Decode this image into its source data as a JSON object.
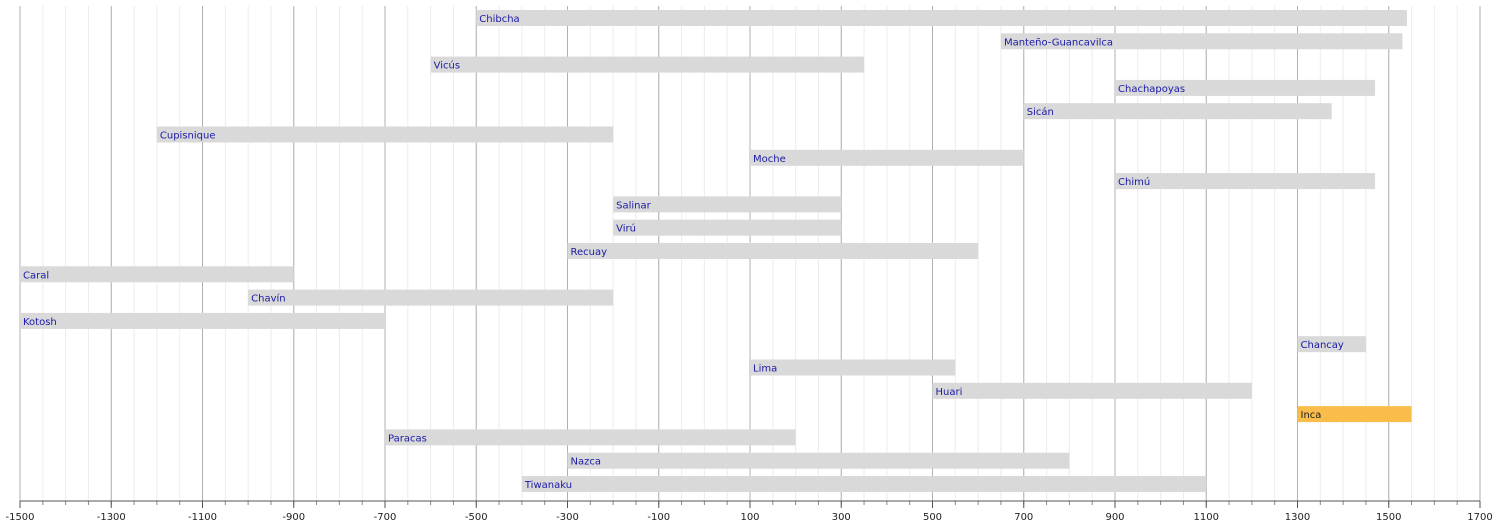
{
  "chart_data": {
    "type": "timeline",
    "xlim": [
      -1500,
      1700
    ],
    "xticks": [
      -1500,
      -1300,
      -1100,
      -900,
      -700,
      -500,
      -300,
      -100,
      100,
      300,
      500,
      700,
      900,
      1100,
      1300,
      1500,
      1700
    ],
    "minor_grid_step": 50,
    "grid": true,
    "label_color": "#1a1aa6",
    "series": [
      {
        "name": "Chibcha",
        "start": -500,
        "end": 1540,
        "color": "#d9d9d9"
      },
      {
        "name": "Manteño-Guancavilca",
        "start": 650,
        "end": 1530,
        "color": "#d9d9d9"
      },
      {
        "name": "Vicús",
        "start": -600,
        "end": 350,
        "color": "#d9d9d9"
      },
      {
        "name": "Chachapoyas",
        "start": 900,
        "end": 1470,
        "color": "#d9d9d9"
      },
      {
        "name": "Sicán",
        "start": 700,
        "end": 1375,
        "color": "#d9d9d9"
      },
      {
        "name": "Cupisnique",
        "start": -1200,
        "end": -200,
        "color": "#d9d9d9"
      },
      {
        "name": "Moche",
        "start": 100,
        "end": 700,
        "color": "#d9d9d9"
      },
      {
        "name": "Chimú",
        "start": 900,
        "end": 1470,
        "color": "#d9d9d9"
      },
      {
        "name": "Salinar",
        "start": -200,
        "end": 300,
        "color": "#d9d9d9"
      },
      {
        "name": "Virú",
        "start": -200,
        "end": 300,
        "color": "#d9d9d9"
      },
      {
        "name": "Recuay",
        "start": -300,
        "end": 600,
        "color": "#d9d9d9"
      },
      {
        "name": "Caral",
        "start": -1500,
        "end": -900,
        "color": "#d9d9d9"
      },
      {
        "name": "Chavín",
        "start": -1000,
        "end": -200,
        "color": "#d9d9d9"
      },
      {
        "name": "Kotosh",
        "start": -1500,
        "end": -700,
        "color": "#d9d9d9"
      },
      {
        "name": "Chancay",
        "start": 1300,
        "end": 1450,
        "color": "#d9d9d9"
      },
      {
        "name": "Lima",
        "start": 100,
        "end": 550,
        "color": "#d9d9d9"
      },
      {
        "name": "Huari",
        "start": 500,
        "end": 1200,
        "color": "#d9d9d9"
      },
      {
        "name": "Inca",
        "start": 1300,
        "end": 1550,
        "color": "#fbbd4a"
      },
      {
        "name": "Paracas",
        "start": -700,
        "end": 200,
        "color": "#d9d9d9"
      },
      {
        "name": "Nazca",
        "start": -300,
        "end": 800,
        "color": "#d9d9d9"
      },
      {
        "name": "Tiwanaku",
        "start": -400,
        "end": 1100,
        "color": "#d9d9d9"
      }
    ]
  }
}
